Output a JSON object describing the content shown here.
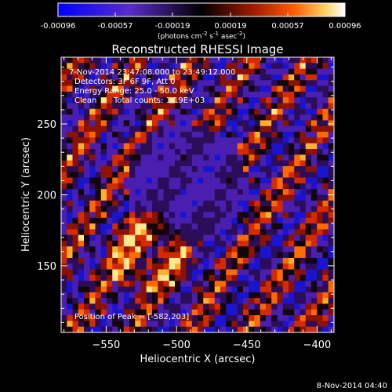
{
  "colorbar": {
    "ticks": [
      "-0.00096",
      "-0.00057",
      "-0.00019",
      "0.00019",
      "0.00057",
      "0.00096"
    ],
    "unit_text": "(photons cm",
    "unit_sup1": "-2",
    "unit_mid": " s",
    "unit_sup2": "-1",
    "unit_end": " asec",
    "unit_sup3": "-2",
    "unit_close": ")"
  },
  "plot": {
    "title": "Reconstructed RHESSI Image",
    "info": {
      "line1": "7-Nov-2014 23:47:08.000 to 23:49:12.000",
      "line2": "Detectors: 3F 6F 9F, Att 0",
      "line3": "Energy Range: 25.0 - 50.0 keV",
      "line4a": "Clean",
      "line4b": "Total counts: 1.19E+03"
    },
    "peak_label": "Position of Peak = [-582,203]",
    "xlabel": "Heliocentric X (arcsec)",
    "ylabel": "Heliocentric Y (arcsec)",
    "xticks": [
      {
        "value": -550,
        "label": "−550"
      },
      {
        "value": -500,
        "label": "−500"
      },
      {
        "value": -450,
        "label": "−450"
      },
      {
        "value": -400,
        "label": "−400"
      }
    ],
    "yticks": [
      {
        "value": 150,
        "label": "150"
      },
      {
        "value": 200,
        "label": "200"
      },
      {
        "value": 250,
        "label": "250"
      }
    ],
    "xlim": [
      -582,
      -388
    ],
    "ylim": [
      103,
      297
    ]
  },
  "footer": {
    "date": "8-Nov-2014 04:40"
  }
}
